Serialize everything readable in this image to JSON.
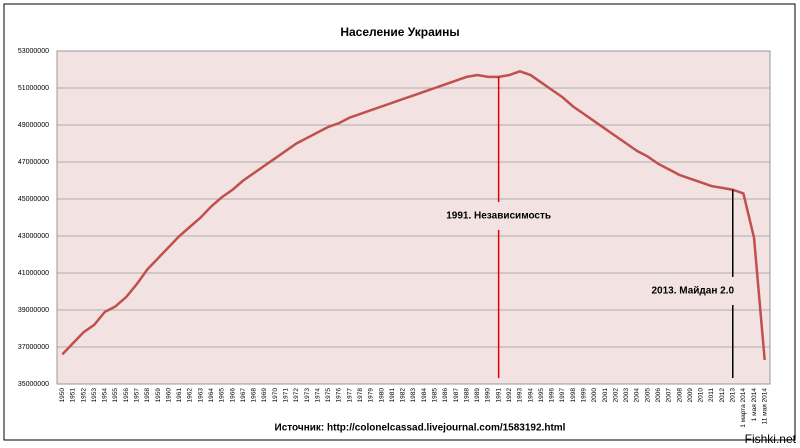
{
  "chart_data": {
    "type": "line",
    "title": "Население Украины",
    "categories": [
      "1950",
      "1951",
      "1952",
      "1953",
      "1954",
      "1955",
      "1956",
      "1957",
      "1958",
      "1959",
      "1960",
      "1961",
      "1962",
      "1963",
      "1964",
      "1965",
      "1966",
      "1967",
      "1968",
      "1969",
      "1970",
      "1971",
      "1972",
      "1973",
      "1974",
      "1975",
      "1976",
      "1977",
      "1978",
      "1979",
      "1980",
      "1981",
      "1982",
      "1983",
      "1984",
      "1985",
      "1986",
      "1987",
      "1988",
      "1989",
      "1990",
      "1991",
      "1992",
      "1993",
      "1994",
      "1995",
      "1996",
      "1997",
      "1998",
      "1999",
      "2000",
      "2001",
      "2002",
      "2003",
      "2004",
      "2005",
      "2006",
      "2007",
      "2008",
      "2009",
      "2010",
      "2011",
      "2012",
      "2013",
      "1 марта 2014",
      "1 мая 2014",
      "11 мая 2014"
    ],
    "series": [
      {
        "name": "Население",
        "color": "#c0504d",
        "values": [
          36600000,
          37200000,
          37800000,
          38200000,
          38900000,
          39200000,
          39700000,
          40400000,
          41200000,
          41800000,
          42400000,
          43000000,
          43500000,
          44000000,
          44600000,
          45100000,
          45500000,
          46000000,
          46400000,
          46800000,
          47200000,
          47600000,
          48000000,
          48300000,
          48600000,
          48900000,
          49100000,
          49400000,
          49600000,
          49800000,
          50000000,
          50200000,
          50400000,
          50600000,
          50800000,
          51000000,
          51200000,
          51400000,
          51600000,
          51700000,
          51600000,
          51600000,
          51700000,
          51900000,
          51700000,
          51300000,
          50900000,
          50500000,
          50000000,
          49600000,
          49200000,
          48800000,
          48400000,
          48000000,
          47600000,
          47300000,
          46900000,
          46600000,
          46300000,
          46100000,
          45900000,
          45700000,
          45600000,
          45500000,
          45300000,
          42900000,
          36300000
        ]
      }
    ],
    "ylim": [
      35000000,
      53000000
    ],
    "yticks": [
      35000000,
      37000000,
      39000000,
      41000000,
      43000000,
      45000000,
      47000000,
      49000000,
      51000000,
      53000000
    ],
    "grid": true,
    "annotations": [
      {
        "text": "1991.  Независимость",
        "category": "1991",
        "color": "#e00000"
      },
      {
        "text": "2013. Майдан 2.0",
        "category": "2013",
        "color": "#000000"
      }
    ],
    "source": "Источник:   http://colonelcassad.livejournal.com/1583192.html",
    "watermark": "Fishki.net"
  }
}
